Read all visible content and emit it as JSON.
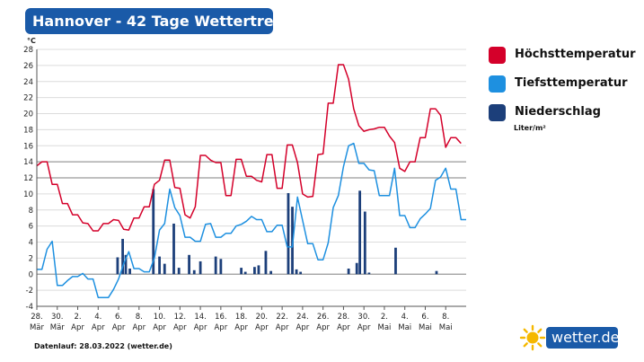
{
  "title": "Hannover - 42 Tage Wettertrend",
  "legend": [
    {
      "label": "Höchsttemperatur",
      "color": "#d4002a"
    },
    {
      "label": "Tiefsttemperatur",
      "color": "#1e90e0"
    },
    {
      "label": "Niederschlag",
      "color": "#1c3f7a"
    }
  ],
  "unit_note": "Liter/m²",
  "footer": "Datenlauf: 28.03.2022 (wetter.de)",
  "brand": "wetter.de",
  "chart_data": {
    "type": "line",
    "title": "Hannover - 42 Tage Wettertrend",
    "ylabel": "°C",
    "ylim": [
      -4,
      28
    ],
    "yticks": [
      -4,
      -2,
      0,
      2,
      4,
      6,
      8,
      10,
      12,
      14,
      16,
      18,
      20,
      22,
      24,
      26,
      28
    ],
    "x_start_index": 0,
    "x_end_index": 41,
    "x_ticks": [
      {
        "i": 0,
        "day": "28.",
        "month": "Mär"
      },
      {
        "i": 2,
        "day": "30.",
        "month": "Mär"
      },
      {
        "i": 4,
        "day": "2.",
        "month": "Apr"
      },
      {
        "i": 6,
        "day": "4.",
        "month": "Apr"
      },
      {
        "i": 8,
        "day": "6.",
        "month": "Apr"
      },
      {
        "i": 10,
        "day": "8.",
        "month": "Apr"
      },
      {
        "i": 12,
        "day": "10.",
        "month": "Apr"
      },
      {
        "i": 14,
        "day": "12.",
        "month": "Apr"
      },
      {
        "i": 16,
        "day": "14.",
        "month": "Apr"
      },
      {
        "i": 18,
        "day": "16.",
        "month": "Apr"
      },
      {
        "i": 20,
        "day": "18.",
        "month": "Apr"
      },
      {
        "i": 22,
        "day": "20.",
        "month": "Apr"
      },
      {
        "i": 24,
        "day": "22.",
        "month": "Apr"
      },
      {
        "i": 26,
        "day": "24.",
        "month": "Apr"
      },
      {
        "i": 28,
        "day": "26.",
        "month": "Apr"
      },
      {
        "i": 30,
        "day": "28.",
        "month": "Apr"
      },
      {
        "i": 32,
        "day": "30.",
        "month": "Apr"
      },
      {
        "i": 34,
        "day": "2.",
        "month": "Mai"
      },
      {
        "i": 36,
        "day": "4.",
        "month": "Mai"
      },
      {
        "i": 38,
        "day": "6.",
        "month": "Mai"
      },
      {
        "i": 40,
        "day": "8.",
        "month": "Mai"
      }
    ],
    "series": [
      {
        "name": "Höchsttemperatur",
        "kind": "line",
        "color": "#d4002a",
        "points": [
          [
            0,
            13.5
          ],
          [
            0.5,
            14
          ],
          [
            1,
            14
          ],
          [
            1.5,
            11.2
          ],
          [
            2,
            11.2
          ],
          [
            2.5,
            8.8
          ],
          [
            3,
            8.8
          ],
          [
            3.5,
            7.4
          ],
          [
            4,
            7.4
          ],
          [
            4.5,
            6.4
          ],
          [
            5,
            6.3
          ],
          [
            5.5,
            5.4
          ],
          [
            6,
            5.4
          ],
          [
            6.5,
            6.3
          ],
          [
            7,
            6.3
          ],
          [
            7.5,
            6.8
          ],
          [
            8,
            6.7
          ],
          [
            8.5,
            5.6
          ],
          [
            9,
            5.5
          ],
          [
            9.5,
            7
          ],
          [
            10,
            7
          ],
          [
            10.5,
            8.4
          ],
          [
            11,
            8.4
          ],
          [
            11.5,
            11.2
          ],
          [
            12,
            11.7
          ],
          [
            12.5,
            14.2
          ],
          [
            13,
            14.2
          ],
          [
            13.5,
            10.8
          ],
          [
            14,
            10.7
          ],
          [
            14.5,
            7.4
          ],
          [
            15,
            7
          ],
          [
            15.5,
            8.4
          ],
          [
            16,
            14.8
          ],
          [
            16.5,
            14.8
          ],
          [
            17,
            14.2
          ],
          [
            17.5,
            13.9
          ],
          [
            18,
            13.9
          ],
          [
            18.5,
            9.8
          ],
          [
            19,
            9.8
          ],
          [
            19.5,
            14.3
          ],
          [
            20,
            14.3
          ],
          [
            20.5,
            12.2
          ],
          [
            21,
            12.2
          ],
          [
            21.5,
            11.7
          ],
          [
            22,
            11.5
          ],
          [
            22.5,
            14.9
          ],
          [
            23,
            14.9
          ],
          [
            23.5,
            10.7
          ],
          [
            24,
            10.7
          ],
          [
            24.5,
            16.1
          ],
          [
            25,
            16.1
          ],
          [
            25.5,
            13.9
          ],
          [
            26,
            10
          ],
          [
            26.5,
            9.6
          ],
          [
            27,
            9.7
          ],
          [
            27.5,
            14.9
          ],
          [
            28,
            15
          ],
          [
            28.5,
            21.3
          ],
          [
            29,
            21.3
          ],
          [
            29.5,
            26.1
          ],
          [
            30,
            26.1
          ],
          [
            30.5,
            24.3
          ],
          [
            31,
            20.6
          ],
          [
            31.5,
            18.5
          ],
          [
            32,
            17.8
          ],
          [
            32.5,
            18
          ],
          [
            33,
            18.1
          ],
          [
            33.5,
            18.3
          ],
          [
            34,
            18.3
          ],
          [
            34.5,
            17.2
          ],
          [
            35,
            16.4
          ],
          [
            35.5,
            13.2
          ],
          [
            36,
            12.8
          ],
          [
            36.5,
            14
          ],
          [
            37,
            14
          ],
          [
            37.5,
            17
          ],
          [
            38,
            17
          ],
          [
            38.5,
            20.6
          ],
          [
            39,
            20.6
          ],
          [
            39.5,
            19.8
          ],
          [
            40,
            15.8
          ],
          [
            40.5,
            17
          ],
          [
            41,
            17
          ],
          [
            41.5,
            16.3
          ]
        ]
      },
      {
        "name": "Tiefsttemperatur",
        "kind": "line",
        "color": "#1e90e0",
        "points": [
          [
            0,
            0.6
          ],
          [
            0.5,
            0.6
          ],
          [
            1,
            3.1
          ],
          [
            1.5,
            4.1
          ],
          [
            2,
            -1.4
          ],
          [
            2.5,
            -1.4
          ],
          [
            3,
            -0.8
          ],
          [
            3.5,
            -0.3
          ],
          [
            4,
            -0.3
          ],
          [
            4.5,
            0.1
          ],
          [
            5,
            -0.6
          ],
          [
            5.5,
            -0.6
          ],
          [
            6,
            -2.9
          ],
          [
            6.5,
            -2.9
          ],
          [
            7,
            -2.9
          ],
          [
            7.5,
            -1.9
          ],
          [
            8,
            -0.6
          ],
          [
            8.5,
            1.3
          ],
          [
            9,
            2.8
          ],
          [
            9.5,
            0.7
          ],
          [
            10,
            0.7
          ],
          [
            10.5,
            0.3
          ],
          [
            11,
            0.3
          ],
          [
            11.5,
            2
          ],
          [
            12,
            5.5
          ],
          [
            12.5,
            6.3
          ],
          [
            13,
            10.6
          ],
          [
            13.5,
            8.3
          ],
          [
            14,
            7.3
          ],
          [
            14.5,
            4.6
          ],
          [
            15,
            4.6
          ],
          [
            15.5,
            4.1
          ],
          [
            16,
            4.1
          ],
          [
            16.5,
            6.2
          ],
          [
            17,
            6.3
          ],
          [
            17.5,
            4.6
          ],
          [
            18,
            4.6
          ],
          [
            18.5,
            5.1
          ],
          [
            19,
            5.1
          ],
          [
            19.5,
            6
          ],
          [
            20,
            6.2
          ],
          [
            20.5,
            6.6
          ],
          [
            21,
            7.2
          ],
          [
            21.5,
            6.8
          ],
          [
            22,
            6.8
          ],
          [
            22.5,
            5.3
          ],
          [
            23,
            5.3
          ],
          [
            23.5,
            6.1
          ],
          [
            24,
            6.1
          ],
          [
            24.5,
            3.4
          ],
          [
            25,
            3.4
          ],
          [
            25.5,
            9.6
          ],
          [
            26,
            6.7
          ],
          [
            26.5,
            3.8
          ],
          [
            27,
            3.8
          ],
          [
            27.5,
            1.8
          ],
          [
            28,
            1.8
          ],
          [
            28.5,
            3.9
          ],
          [
            29,
            8.3
          ],
          [
            29.5,
            9.8
          ],
          [
            30,
            13.4
          ],
          [
            30.5,
            16
          ],
          [
            31,
            16.3
          ],
          [
            31.5,
            13.8
          ],
          [
            32,
            13.8
          ],
          [
            32.5,
            13
          ],
          [
            33,
            12.9
          ],
          [
            33.5,
            9.8
          ],
          [
            34,
            9.8
          ],
          [
            34.5,
            9.8
          ],
          [
            35,
            13.2
          ],
          [
            35.5,
            7.3
          ],
          [
            36,
            7.3
          ],
          [
            36.5,
            5.8
          ],
          [
            37,
            5.8
          ],
          [
            37.5,
            6.9
          ],
          [
            38,
            7.5
          ],
          [
            38.5,
            8.2
          ],
          [
            39,
            11.7
          ],
          [
            39.5,
            12.1
          ],
          [
            40,
            13.2
          ],
          [
            40.5,
            10.6
          ],
          [
            41,
            10.6
          ],
          [
            41.5,
            6.8
          ],
          [
            42,
            6.8
          ]
        ]
      },
      {
        "name": "Niederschlag",
        "kind": "bar",
        "color": "#1c3f7a",
        "unit": "Liter/m²",
        "values": [
          [
            7.9,
            2.1
          ],
          [
            8.4,
            4.4
          ],
          [
            8.7,
            2.4
          ],
          [
            9.1,
            0.7
          ],
          [
            11.4,
            10.6
          ],
          [
            12.0,
            2.2
          ],
          [
            12.5,
            1.3
          ],
          [
            13.4,
            6.3
          ],
          [
            13.9,
            0.8
          ],
          [
            14.9,
            2.4
          ],
          [
            15.4,
            0.5
          ],
          [
            16.0,
            1.6
          ],
          [
            17.5,
            2.2
          ],
          [
            18.0,
            1.9
          ],
          [
            20.0,
            0.8
          ],
          [
            20.4,
            0.3
          ],
          [
            21.3,
            0.9
          ],
          [
            21.7,
            1.1
          ],
          [
            22.4,
            2.9
          ],
          [
            22.9,
            0.4
          ],
          [
            24.6,
            10.1
          ],
          [
            25.0,
            8.4
          ],
          [
            25.4,
            0.6
          ],
          [
            25.8,
            0.3
          ],
          [
            30.5,
            0.7
          ],
          [
            31.3,
            1.4
          ],
          [
            31.6,
            10.4
          ],
          [
            32.1,
            7.8
          ],
          [
            32.5,
            0.2
          ],
          [
            35.1,
            3.3
          ],
          [
            39.1,
            0.4
          ]
        ]
      }
    ]
  }
}
